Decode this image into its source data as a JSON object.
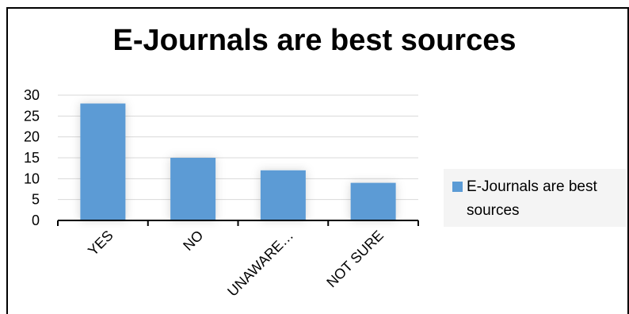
{
  "chart_data": {
    "type": "bar",
    "title": "E-Journals are best sources",
    "categories": [
      "YES",
      "NO",
      "UNAWARE…",
      "NOT SURE"
    ],
    "series": [
      {
        "name": "E-Journals are best sources",
        "values": [
          28,
          15,
          12,
          9
        ]
      }
    ],
    "ylim": [
      0,
      30
    ],
    "yticks": [
      0,
      5,
      10,
      15,
      20,
      25,
      30
    ],
    "grid": true,
    "legend_position": "right",
    "colors": {
      "bar": "#5b9bd5",
      "grid": "#d9d9d9",
      "axis": "#000000"
    }
  }
}
